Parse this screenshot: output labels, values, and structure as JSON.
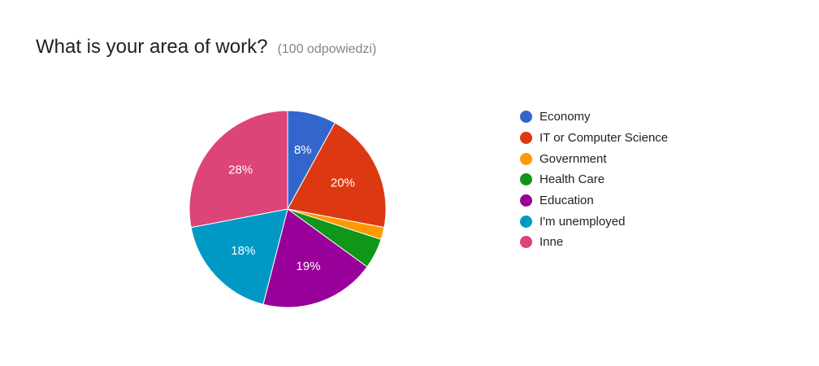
{
  "header": {
    "title": "What is your area of work?",
    "response_count": "(100 odpowiedzi)"
  },
  "chart_data": {
    "type": "pie",
    "title": "What is your area of work?",
    "start_angle_deg": 90,
    "direction": "clockwise",
    "slices": [
      {
        "label": "Economy",
        "value": 8,
        "color": "#3366cc",
        "display": "8%"
      },
      {
        "label": "IT or Computer Science",
        "value": 20,
        "color": "#dc3912",
        "display": "20%"
      },
      {
        "label": "Government",
        "value": 2,
        "color": "#ff9900",
        "display": ""
      },
      {
        "label": "Health Care",
        "value": 5,
        "color": "#109618",
        "display": ""
      },
      {
        "label": "Education",
        "value": 19,
        "color": "#990099",
        "display": "19%"
      },
      {
        "label": "I'm unemployed",
        "value": 18,
        "color": "#0099c6",
        "display": "18%"
      },
      {
        "label": "Inne",
        "value": 28,
        "color": "#dd4477",
        "display": "28%"
      }
    ],
    "legend_position": "right"
  }
}
